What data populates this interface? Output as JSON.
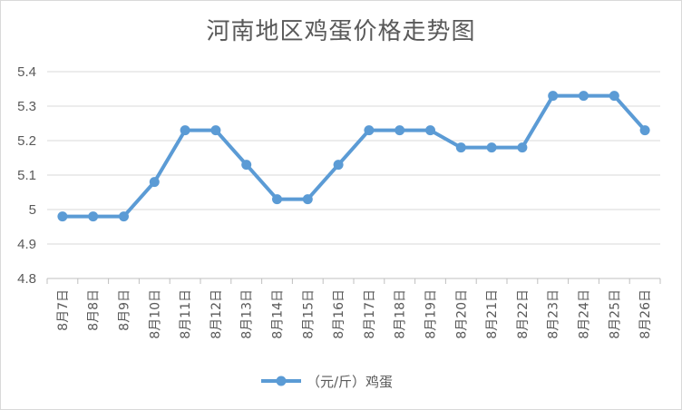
{
  "chart_data": {
    "type": "line",
    "title": "河南地区鸡蛋价格走势图",
    "categories": [
      "8月7日",
      "8月8日",
      "8月9日",
      "8月10日",
      "8月11日",
      "8月12日",
      "8月13日",
      "8月14日",
      "8月15日",
      "8月16日",
      "8月17日",
      "8月18日",
      "8月19日",
      "8月20日",
      "8月21日",
      "8月22日",
      "8月23日",
      "8月24日",
      "8月25日",
      "8月26日"
    ],
    "series": [
      {
        "name": "（元/斤）鸡蛋",
        "values": [
          4.98,
          4.98,
          4.98,
          5.08,
          5.23,
          5.23,
          5.13,
          5.03,
          5.03,
          5.13,
          5.23,
          5.23,
          5.23,
          5.18,
          5.18,
          5.18,
          5.33,
          5.33,
          5.33,
          5.23
        ],
        "color": "#5b9bd5"
      }
    ],
    "ylim": [
      4.8,
      5.4
    ],
    "yticks": [
      4.8,
      4.9,
      5,
      5.1,
      5.2,
      5.3,
      5.4
    ],
    "ytick_labels": [
      "4.8",
      "4.9",
      "5",
      "5.1",
      "5.2",
      "5.3",
      "5.4"
    ],
    "xlabel": "",
    "ylabel": "",
    "grid": true,
    "legend_position": "bottom"
  },
  "colors": {
    "grid": "#d9d9d9",
    "axis": "#bfbfbf",
    "text": "#595959"
  }
}
